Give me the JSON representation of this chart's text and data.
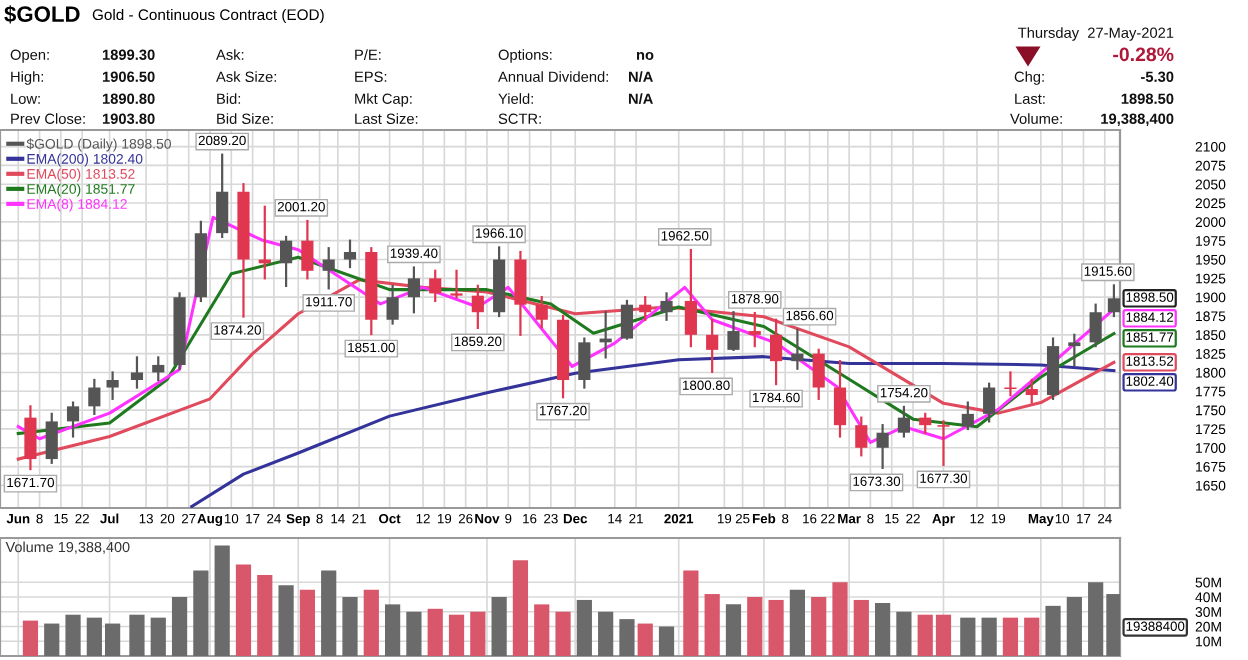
{
  "chart_data": [
    {
      "type": "candlestick",
      "title": "$GOLD",
      "subtitle": "Gold - Continuous Contract (EOD)",
      "series": [
        {
          "type": "candlestick",
          "name": "$GOLD (Daily) 1898.50",
          "color": "#555555",
          "x": [
            "2020-06-05",
            "2020-06-12",
            "2020-06-19",
            "2020-06-26",
            "2020-07-02",
            "2020-07-10",
            "2020-07-17",
            "2020-07-24",
            "2020-07-31",
            "2020-08-07",
            "2020-08-14",
            "2020-08-21",
            "2020-08-28",
            "2020-09-04",
            "2020-09-11",
            "2020-09-18",
            "2020-09-25",
            "2020-10-02",
            "2020-10-09",
            "2020-10-16",
            "2020-10-23",
            "2020-10-30",
            "2020-11-06",
            "2020-11-13",
            "2020-11-20",
            "2020-11-27",
            "2020-12-04",
            "2020-12-11",
            "2020-12-18",
            "2020-12-24",
            "2020-12-31",
            "2021-01-08",
            "2021-01-15",
            "2021-01-22",
            "2021-01-29",
            "2021-02-05",
            "2021-02-12",
            "2021-02-19",
            "2021-02-26",
            "2021-03-05",
            "2021-03-12",
            "2021-03-19",
            "2021-03-26",
            "2021-04-01",
            "2021-04-09",
            "2021-04-16",
            "2021-04-23",
            "2021-04-30",
            "2021-05-07",
            "2021-05-14",
            "2021-05-21",
            "2021-05-27"
          ],
          "ohlc": [
            [
              1740,
              1755,
              1671.7,
              1685
            ],
            [
              1685,
              1745,
              1680,
              1735
            ],
            [
              1735,
              1760,
              1715,
              1755
            ],
            [
              1755,
              1790,
              1745,
              1780
            ],
            [
              1780,
              1800,
              1765,
              1790
            ],
            [
              1790,
              1820,
              1780,
              1800
            ],
            [
              1800,
              1820,
              1790,
              1810
            ],
            [
              1810,
              1905,
              1805,
              1900
            ],
            [
              1900,
              2000,
              1895,
              1985
            ],
            [
              1985,
              2089.2,
              1980,
              2040
            ],
            [
              2040,
              2050,
              1874.2,
              1950
            ],
            [
              1950,
              2020,
              1925,
              1945
            ],
            [
              1945,
              1980,
              1915,
              1975
            ],
            [
              1975,
              2001.2,
              1925,
              1935
            ],
            [
              1935,
              1965,
              1911.7,
              1950
            ],
            [
              1950,
              1975,
              1940,
              1960
            ],
            [
              1960,
              1965,
              1851,
              1870
            ],
            [
              1870,
              1915,
              1865,
              1900
            ],
            [
              1900,
              1939.4,
              1880,
              1925
            ],
            [
              1925,
              1935,
              1895,
              1905
            ],
            [
              1905,
              1935,
              1900,
              1902
            ],
            [
              1902,
              1915,
              1859.2,
              1880
            ],
            [
              1880,
              1966.1,
              1875,
              1950
            ],
            [
              1950,
              1960,
              1850,
              1890
            ],
            [
              1890,
              1900,
              1860,
              1870
            ],
            [
              1870,
              1875,
              1767.2,
              1790
            ],
            [
              1790,
              1845,
              1780,
              1840
            ],
            [
              1840,
              1880,
              1820,
              1845
            ],
            [
              1845,
              1895,
              1845,
              1890
            ],
            [
              1890,
              1900,
              1870,
              1880
            ],
            [
              1880,
              1905,
              1870,
              1895
            ],
            [
              1895,
              1962.5,
              1835,
              1850
            ],
            [
              1850,
              1870,
              1800.8,
              1830
            ],
            [
              1830,
              1880,
              1830,
              1855
            ],
            [
              1855,
              1878.9,
              1835,
              1850
            ],
            [
              1850,
              1870,
              1784.6,
              1815
            ],
            [
              1815,
              1856.6,
              1805,
              1825
            ],
            [
              1825,
              1830,
              1765,
              1780
            ],
            [
              1780,
              1815,
              1715,
              1730
            ],
            [
              1730,
              1740,
              1690,
              1700
            ],
            [
              1700,
              1730,
              1673.3,
              1720
            ],
            [
              1720,
              1754.2,
              1715,
              1740
            ],
            [
              1740,
              1745,
              1720,
              1730
            ],
            [
              1730,
              1735,
              1677.3,
              1728
            ],
            [
              1728,
              1760,
              1725,
              1745
            ],
            [
              1745,
              1785,
              1735,
              1780
            ],
            [
              1780,
              1800,
              1770,
              1778
            ],
            [
              1778,
              1790,
              1760,
              1770
            ],
            [
              1770,
              1845,
              1765,
              1835
            ],
            [
              1835,
              1850,
              1810,
              1840
            ],
            [
              1840,
              1890,
              1835,
              1880
            ],
            [
              1880,
              1915.6,
              1875,
              1898.5
            ]
          ],
          "colors": [
            "#e0364f",
            "#555555",
            "#555555",
            "#555555",
            "#555555",
            "#555555",
            "#555555",
            "#555555",
            "#555555",
            "#555555",
            "#e0364f",
            "#e0364f",
            "#555555",
            "#e0364f",
            "#555555",
            "#555555",
            "#e0364f",
            "#555555",
            "#555555",
            "#e0364f",
            "#e0364f",
            "#e0364f",
            "#555555",
            "#e0364f",
            "#e0364f",
            "#e0364f",
            "#555555",
            "#555555",
            "#555555",
            "#e0364f",
            "#555555",
            "#e0364f",
            "#e0364f",
            "#555555",
            "#e0364f",
            "#e0364f",
            "#555555",
            "#e0364f",
            "#e0364f",
            "#e0364f",
            "#555555",
            "#555555",
            "#e0364f",
            "#e0364f",
            "#555555",
            "#555555",
            "#e0364f",
            "#e0364f",
            "#555555",
            "#555555",
            "#555555",
            "#555555"
          ]
        },
        {
          "type": "line",
          "name": "EMA(200) 1802.40",
          "color": "#33339a",
          "x": [
            "2020-07-28",
            "2020-08-14",
            "2020-09-01",
            "2020-10-01",
            "2020-11-02",
            "2020-12-01",
            "2021-01-04",
            "2021-02-01",
            "2021-03-01",
            "2021-04-01",
            "2021-05-03",
            "2021-05-27"
          ],
          "values": [
            1622,
            1665,
            1693,
            1742,
            1773,
            1799,
            1817,
            1821,
            1812,
            1812,
            1810,
            1802.4
          ]
        },
        {
          "type": "line",
          "name": "EMA(50) 1813.52",
          "color": "#e04a5c",
          "x": [
            "2020-06-01",
            "2020-07-01",
            "2020-08-03",
            "2020-08-17",
            "2020-09-01",
            "2020-09-21",
            "2020-10-12",
            "2020-11-02",
            "2020-12-01",
            "2020-12-31",
            "2021-02-01",
            "2021-03-01",
            "2021-04-01",
            "2021-04-19",
            "2021-05-03",
            "2021-05-27"
          ],
          "values": [
            1685,
            1715,
            1765,
            1825,
            1878,
            1923,
            1913,
            1907,
            1878,
            1887,
            1874,
            1834,
            1759,
            1746,
            1760,
            1813.52
          ]
        },
        {
          "type": "line",
          "name": "EMA(20) 1851.77",
          "color": "#1f7a1f",
          "x": [
            "2020-06-01",
            "2020-07-01",
            "2020-07-20",
            "2020-08-10",
            "2020-09-01",
            "2020-10-01",
            "2020-11-02",
            "2020-11-23",
            "2020-12-07",
            "2021-01-04",
            "2021-02-01",
            "2021-03-01",
            "2021-03-22",
            "2021-04-12",
            "2021-05-03",
            "2021-05-27"
          ],
          "values": [
            1719,
            1733,
            1791,
            1931,
            1953,
            1910,
            1910,
            1891,
            1852,
            1887,
            1861,
            1791,
            1738,
            1728,
            1794,
            1851.77
          ]
        },
        {
          "type": "line",
          "name": "EMA(8) 1884.12",
          "color": "#ff33ff",
          "x": [
            "2020-06-01",
            "2020-06-08",
            "2020-07-01",
            "2020-07-24",
            "2020-08-04",
            "2020-08-20",
            "2020-09-01",
            "2020-09-28",
            "2020-10-12",
            "2020-10-30",
            "2020-11-09",
            "2020-11-30",
            "2020-12-14",
            "2021-01-06",
            "2021-01-15",
            "2021-02-05",
            "2021-02-25",
            "2021-03-08",
            "2021-03-19",
            "2021-04-01",
            "2021-04-19",
            "2021-05-03",
            "2021-05-27"
          ],
          "values": [
            1728,
            1712,
            1746,
            1804,
            2006,
            1976,
            1963,
            1891,
            1913,
            1887,
            1913,
            1808,
            1839,
            1913,
            1870,
            1839,
            1781,
            1707,
            1728,
            1712,
            1751,
            1799,
            1884.12
          ]
        }
      ],
      "xlim": [
        "2020-05-26",
        "2021-05-29"
      ],
      "xticks": [
        {
          "value": "2020-06-01",
          "label": "Jun"
        },
        {
          "value": "2020-06-08",
          "label": "8"
        },
        {
          "value": "2020-06-15",
          "label": "15"
        },
        {
          "value": "2020-06-22",
          "label": "22"
        },
        {
          "value": "2020-07-01",
          "label": "Jul"
        },
        {
          "value": "2020-07-13",
          "label": "13"
        },
        {
          "value": "2020-07-20",
          "label": "20"
        },
        {
          "value": "2020-07-27",
          "label": "27"
        },
        {
          "value": "2020-08-03",
          "label": "Aug"
        },
        {
          "value": "2020-08-10",
          "label": "10"
        },
        {
          "value": "2020-08-17",
          "label": "17"
        },
        {
          "value": "2020-08-24",
          "label": "24"
        },
        {
          "value": "2020-09-01",
          "label": "Sep"
        },
        {
          "value": "2020-09-08",
          "label": "8"
        },
        {
          "value": "2020-09-14",
          "label": "14"
        },
        {
          "value": "2020-09-21",
          "label": "21"
        },
        {
          "value": "2020-10-01",
          "label": "Oct"
        },
        {
          "value": "2020-10-12",
          "label": "12"
        },
        {
          "value": "2020-10-19",
          "label": "19"
        },
        {
          "value": "2020-10-26",
          "label": "26"
        },
        {
          "value": "2020-11-02",
          "label": "Nov"
        },
        {
          "value": "2020-11-09",
          "label": "9"
        },
        {
          "value": "2020-11-16",
          "label": "16"
        },
        {
          "value": "2020-11-23",
          "label": "23"
        },
        {
          "value": "2020-12-01",
          "label": "Dec"
        },
        {
          "value": "2020-12-14",
          "label": "14"
        },
        {
          "value": "2020-12-21",
          "label": "21"
        },
        {
          "value": "2021-01-04",
          "label": "2021"
        },
        {
          "value": "2021-01-19",
          "label": "19"
        },
        {
          "value": "2021-01-25",
          "label": "25"
        },
        {
          "value": "2021-02-01",
          "label": "Feb"
        },
        {
          "value": "2021-02-08",
          "label": "8"
        },
        {
          "value": "2021-02-16",
          "label": "16"
        },
        {
          "value": "2021-02-22",
          "label": "22"
        },
        {
          "value": "2021-03-01",
          "label": "Mar"
        },
        {
          "value": "2021-03-08",
          "label": "8"
        },
        {
          "value": "2021-03-15",
          "label": "15"
        },
        {
          "value": "2021-03-22",
          "label": "22"
        },
        {
          "value": "2021-04-01",
          "label": "Apr"
        },
        {
          "value": "2021-04-12",
          "label": "12"
        },
        {
          "value": "2021-04-19",
          "label": "19"
        },
        {
          "value": "2021-05-03",
          "label": "May"
        },
        {
          "value": "2021-05-10",
          "label": "10"
        },
        {
          "value": "2021-05-17",
          "label": "17"
        },
        {
          "value": "2021-05-24",
          "label": "24"
        }
      ],
      "ylim": [
        1620,
        2122
      ],
      "yticks": [
        1650,
        1675,
        1700,
        1725,
        1750,
        1775,
        1800,
        1825,
        1850,
        1875,
        1900,
        1925,
        1950,
        1975,
        2000,
        2025,
        2050,
        2075,
        2100
      ],
      "grid": true,
      "legend": "top left",
      "annotations": [
        "Open:",
        "1899.30",
        "High:",
        "1906.50",
        "Low:",
        "1890.80",
        "Prev Close:",
        "1903.80",
        "Ask:",
        "Ask Size:",
        "Bid:",
        "Bid Size:",
        "P/E:",
        "EPS:",
        "Mkt Cap:",
        "Last Size:",
        "Options:",
        "no",
        "Annual Dividend:",
        "N/A",
        "Yield:",
        "N/A",
        "SCTR:",
        "Thursday  27-May-2021",
        "-0.28%",
        "Chg:",
        "-5.30",
        "Last:",
        "1898.50",
        "Volume:",
        "19,388,400",
        {
          "text": "1671.70",
          "x": "2020-06-05",
          "y": 1671.7
        },
        {
          "text": "2089.20",
          "x": "2020-08-07",
          "y": 2089.2
        },
        {
          "text": "1874.20",
          "x": "2020-08-12",
          "y": 1874.2
        },
        {
          "text": "2001.20",
          "x": "2020-09-02",
          "y": 2001.2
        },
        {
          "text": "1911.70",
          "x": "2020-09-11",
          "y": 1911.7
        },
        {
          "text": "1851.00",
          "x": "2020-09-25",
          "y": 1851.0
        },
        {
          "text": "1939.40",
          "x": "2020-10-09",
          "y": 1939.4
        },
        {
          "text": "1859.20",
          "x": "2020-10-30",
          "y": 1859.2
        },
        {
          "text": "1966.10",
          "x": "2020-11-06",
          "y": 1966.1
        },
        {
          "text": "1767.20",
          "x": "2020-11-27",
          "y": 1767.2
        },
        {
          "text": "1962.50",
          "x": "2021-01-06",
          "y": 1962.5
        },
        {
          "text": "1800.80",
          "x": "2021-01-13",
          "y": 1800.8
        },
        {
          "text": "1878.90",
          "x": "2021-01-29",
          "y": 1878.9
        },
        {
          "text": "1784.60",
          "x": "2021-02-05",
          "y": 1784.6
        },
        {
          "text": "1856.60",
          "x": "2021-02-16",
          "y": 1856.6
        },
        {
          "text": "1673.30",
          "x": "2021-03-10",
          "y": 1673.3
        },
        {
          "text": "1754.20",
          "x": "2021-03-19",
          "y": 1754.2
        },
        {
          "text": "1677.30",
          "x": "2021-04-01",
          "y": 1677.3
        },
        {
          "text": "1915.60",
          "x": "2021-05-25",
          "y": 1915.6
        },
        {
          "text": "1898.50",
          "x": "2021-05-29",
          "y": 1898.5
        },
        {
          "text": "1884.12",
          "x": "2021-05-29",
          "y": 1884.12
        },
        {
          "text": "1851.77",
          "x": "2021-05-29",
          "y": 1851.77
        },
        {
          "text": "1813.52",
          "x": "2021-05-29",
          "y": 1813.52
        },
        {
          "text": "1802.40",
          "x": "2021-05-29",
          "y": 1802.4
        }
      ]
    },
    {
      "type": "bar",
      "title": "Volume 19,388,400",
      "x": [
        "2020-06-05",
        "2020-06-12",
        "2020-06-19",
        "2020-06-26",
        "2020-07-02",
        "2020-07-10",
        "2020-07-17",
        "2020-07-24",
        "2020-07-31",
        "2020-08-07",
        "2020-08-14",
        "2020-08-21",
        "2020-08-28",
        "2020-09-04",
        "2020-09-11",
        "2020-09-18",
        "2020-09-25",
        "2020-10-02",
        "2020-10-09",
        "2020-10-16",
        "2020-10-23",
        "2020-10-30",
        "2020-11-06",
        "2020-11-13",
        "2020-11-20",
        "2020-11-27",
        "2020-12-04",
        "2020-12-11",
        "2020-12-18",
        "2020-12-24",
        "2020-12-31",
        "2021-01-08",
        "2021-01-15",
        "2021-01-22",
        "2021-01-29",
        "2021-02-05",
        "2021-02-12",
        "2021-02-19",
        "2021-02-26",
        "2021-03-05",
        "2021-03-12",
        "2021-03-19",
        "2021-03-26",
        "2021-04-01",
        "2021-04-09",
        "2021-04-16",
        "2021-04-23",
        "2021-04-30",
        "2021-05-07",
        "2021-05-14",
        "2021-05-21",
        "2021-05-27"
      ],
      "values": [
        24,
        22,
        28,
        26,
        22,
        28,
        26,
        40,
        58,
        75,
        62,
        55,
        48,
        45,
        58,
        40,
        45,
        35,
        30,
        32,
        28,
        30,
        40,
        65,
        35,
        30,
        38,
        30,
        25,
        22,
        20,
        58,
        42,
        35,
        40,
        38,
        45,
        40,
        50,
        38,
        36,
        30,
        28,
        28,
        26,
        26,
        26,
        26,
        34,
        40,
        50,
        42
      ],
      "colors": [
        "#d9576b",
        "#6b6b6b",
        "#6b6b6b",
        "#6b6b6b",
        "#6b6b6b",
        "#6b6b6b",
        "#6b6b6b",
        "#6b6b6b",
        "#6b6b6b",
        "#6b6b6b",
        "#d9576b",
        "#d9576b",
        "#6b6b6b",
        "#d9576b",
        "#6b6b6b",
        "#6b6b6b",
        "#d9576b",
        "#6b6b6b",
        "#6b6b6b",
        "#d9576b",
        "#d9576b",
        "#d9576b",
        "#6b6b6b",
        "#d9576b",
        "#d9576b",
        "#d9576b",
        "#6b6b6b",
        "#6b6b6b",
        "#6b6b6b",
        "#d9576b",
        "#6b6b6b",
        "#d9576b",
        "#d9576b",
        "#6b6b6b",
        "#d9576b",
        "#d9576b",
        "#6b6b6b",
        "#d9576b",
        "#d9576b",
        "#d9576b",
        "#6b6b6b",
        "#6b6b6b",
        "#d9576b",
        "#d9576b",
        "#6b6b6b",
        "#6b6b6b",
        "#d9576b",
        "#d9576b",
        "#6b6b6b",
        "#6b6b6b",
        "#6b6b6b",
        "#6b6b6b"
      ],
      "xlim": [
        "2020-05-26",
        "2021-05-29"
      ],
      "xticks": [
        {
          "value": "2020-06-01",
          "label": null
        },
        {
          "value": "2020-07-01",
          "label": null
        },
        {
          "value": "2020-08-03",
          "label": null
        },
        {
          "value": "2020-09-01",
          "label": null
        },
        {
          "value": "2020-10-01",
          "label": null
        },
        {
          "value": "2020-11-02",
          "label": null
        },
        {
          "value": "2020-12-01",
          "label": null
        },
        {
          "value": "2021-01-04",
          "label": null
        },
        {
          "value": "2021-02-01",
          "label": null
        },
        {
          "value": "2021-03-01",
          "label": null
        },
        {
          "value": "2021-04-01",
          "label": null
        },
        {
          "value": "2021-05-03",
          "label": null
        }
      ],
      "ylim": [
        0,
        80
      ],
      "yticks": [
        {
          "value": 10,
          "label": "10M"
        },
        {
          "value": 20,
          "label": "20M"
        },
        {
          "value": 30,
          "label": "30M"
        },
        {
          "value": 40,
          "label": "40M"
        },
        {
          "value": 50,
          "label": "50M"
        }
      ],
      "grid": true,
      "tick_labels": "y",
      "annotations": [
        {
          "text": "19388400",
          "x": "2021-05-29",
          "y": 19.3884
        }
      ]
    }
  ]
}
